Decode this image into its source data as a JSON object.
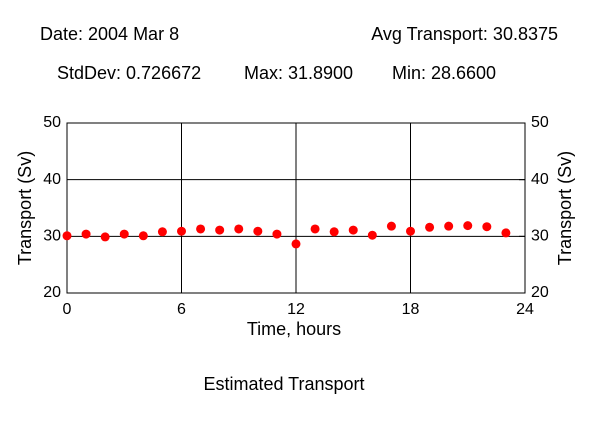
{
  "chart_data": {
    "type": "scatter",
    "title": "Estimated Transport",
    "annotations": [
      "Date: 2004 Mar 8",
      "Avg Transport: 30.8375",
      "StdDev: 0.726672",
      "Max: 31.8900",
      "Min: 28.6600"
    ],
    "x_label": "Time, hours",
    "y_label": "Transport (Sv)",
    "y2_label": "Transport (Sv)",
    "x": [
      0,
      1,
      2,
      3,
      4,
      5,
      6,
      7,
      8,
      9,
      10,
      11,
      12,
      13,
      14,
      15,
      16,
      17,
      18,
      19,
      20,
      21,
      22,
      23
    ],
    "series": [
      {
        "color": "#ff0000",
        "values": [
          30.1,
          30.4,
          29.9,
          30.4,
          30.1,
          30.8,
          30.9,
          31.3,
          31.1,
          31.3,
          30.9,
          30.4,
          28.66,
          31.3,
          30.8,
          31.1,
          30.2,
          31.8,
          30.9,
          31.6,
          31.8,
          31.89,
          31.7,
          30.6
        ]
      }
    ],
    "xlim": [
      0,
      24
    ],
    "xticks": [
      0,
      6,
      12,
      18,
      24
    ],
    "ylim": [
      20,
      50
    ],
    "yticks": [
      20,
      30,
      40,
      50
    ],
    "y2lim": [
      20,
      50
    ],
    "y2ticks": [
      20,
      30,
      40,
      50
    ],
    "grid": true
  }
}
